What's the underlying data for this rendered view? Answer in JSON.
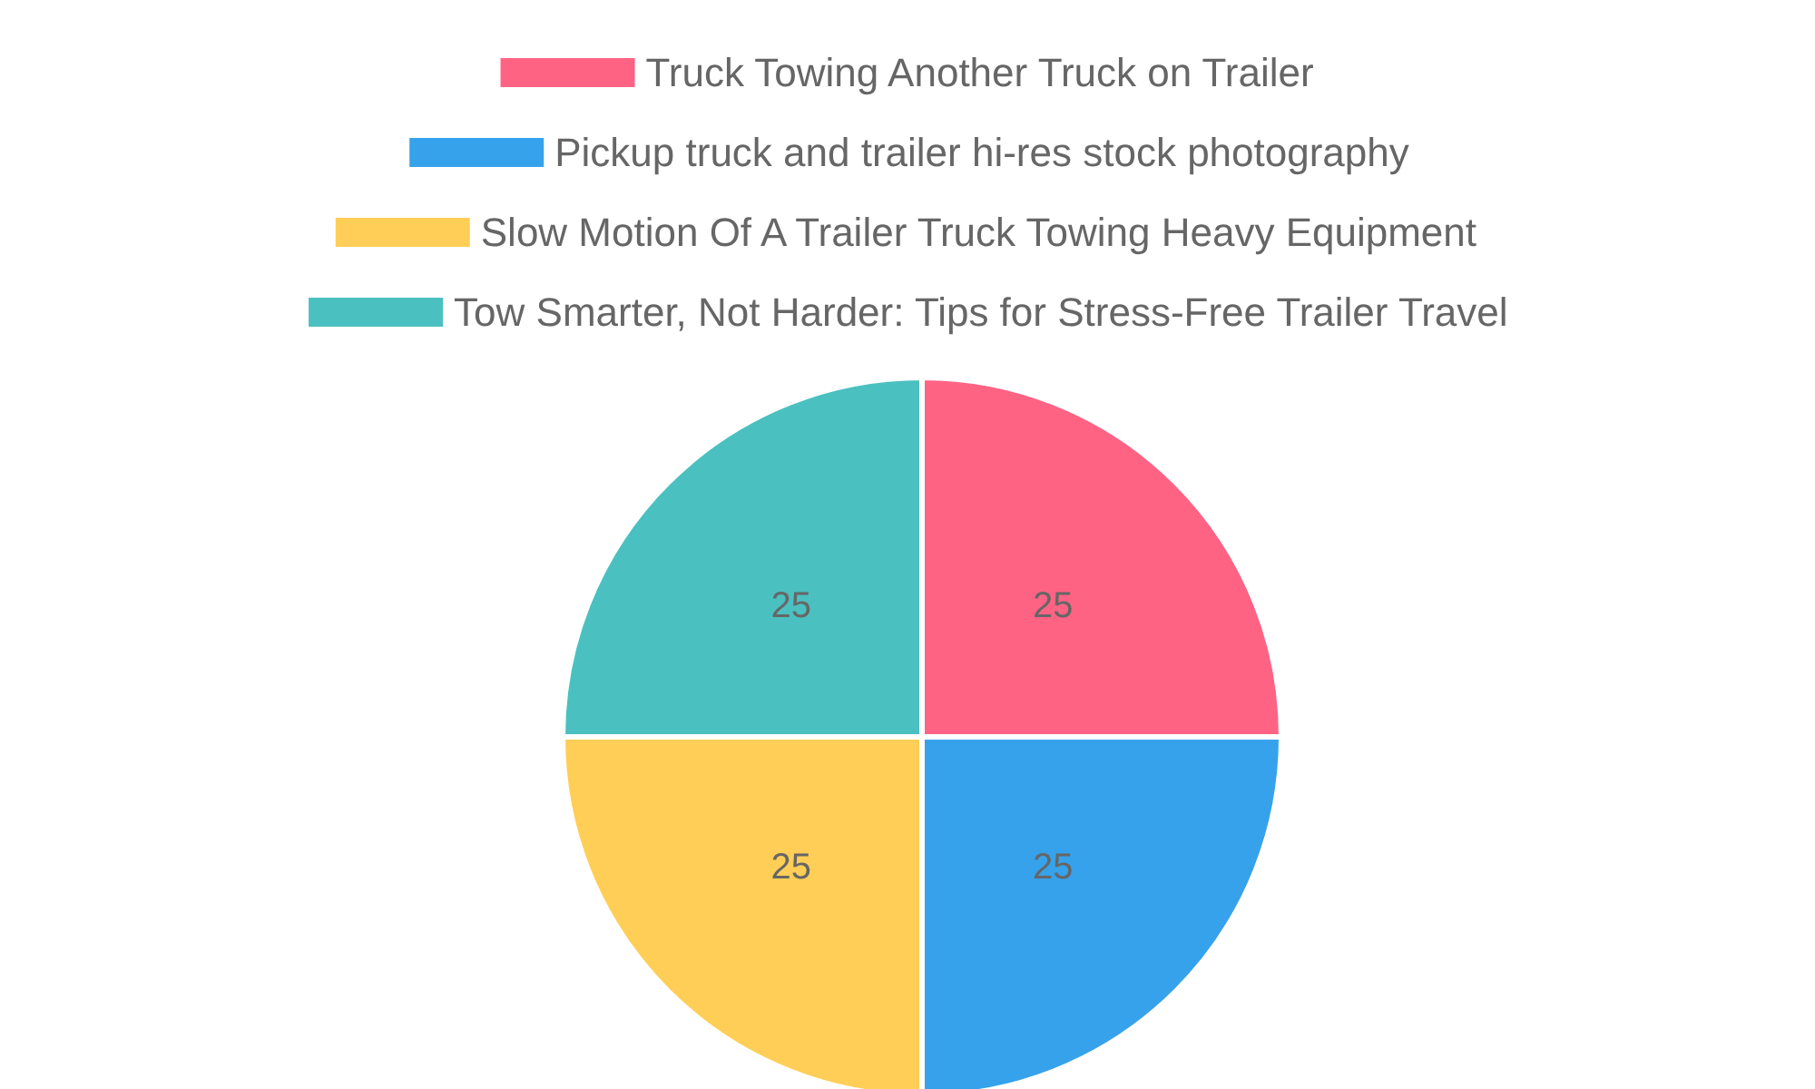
{
  "chart_data": {
    "type": "pie",
    "categories": [
      "Truck Towing Another Truck on Trailer",
      "Pickup truck and trailer hi-res stock photography",
      "Slow Motion Of A Trailer Truck Towing Heavy Equipment",
      "Tow Smarter, Not Harder: Tips for Stress-Free Trailer Travel"
    ],
    "values": [
      25,
      25,
      25,
      25
    ],
    "colors": [
      "#ff6384",
      "#36a2eb",
      "#ffce56",
      "#4bc0c0"
    ],
    "data_labels": true,
    "legend": "top"
  }
}
